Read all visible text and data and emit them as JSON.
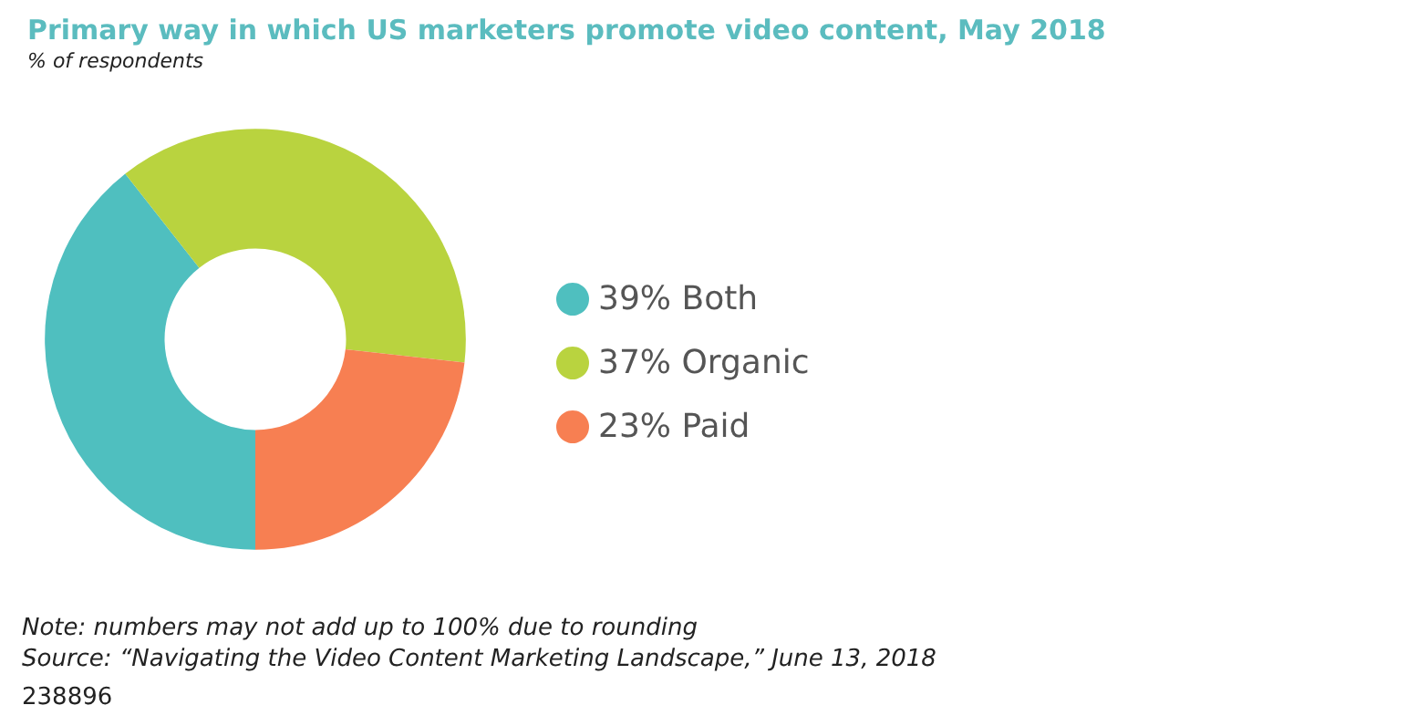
{
  "chart_data": {
    "type": "donut",
    "title": "Primary way in which US marketers promote video content, May 2018",
    "subtitle": "% of respondents",
    "categories": [
      "Both",
      "Organic",
      "Paid"
    ],
    "values": [
      39,
      37,
      23
    ],
    "value_labels": [
      "39%",
      "37%",
      "23%"
    ],
    "colors": [
      "#4fbfbf",
      "#b9d33f",
      "#f77f52"
    ],
    "legend": "right",
    "annotations": [
      "Note: numbers may not add up to 100% due to rounding",
      "Source: “Navigating the Video Content Marketing Landscape,” June 13, 2018",
      "238896"
    ]
  }
}
